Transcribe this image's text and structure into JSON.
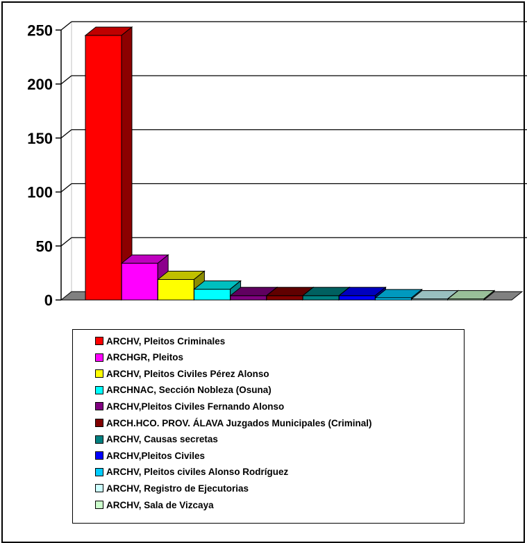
{
  "chart_data": {
    "type": "bar",
    "title": "",
    "xlabel": "",
    "ylabel": "",
    "ylim": [
      0,
      250
    ],
    "yticks": [
      0,
      50,
      100,
      150,
      200,
      250
    ],
    "grid": true,
    "legend_position": "bottom",
    "style": "3d-column",
    "categories": [
      "ARCHV, Pleitos Criminales",
      "ARCHGR, Pleitos",
      "ARCHV, Pleitos Civiles Pérez Alonso",
      "ARCHNAC, Sección Nobleza (Osuna)",
      "ARCHV,Pleitos Civiles Fernando Alonso",
      "ARCH.HCO. PROV. ÁLAVA Juzgados Municipales (Criminal)",
      "ARCHV, Causas secretas",
      "ARCHV,Pleitos Civiles",
      "ARCHV, Pleitos civiles  Alonso Rodríguez",
      "ARCHV, Registro de Ejecutorias",
      "ARCHV, Sala de Vizcaya"
    ],
    "values": [
      245,
      34,
      19,
      10,
      4,
      4,
      4,
      4,
      2,
      1,
      1
    ],
    "colors": [
      "#ff0000",
      "#ff00ff",
      "#ffff00",
      "#00ffff",
      "#800080",
      "#800000",
      "#008080",
      "#0000ff",
      "#00ccff",
      "#ccffff",
      "#ccffcc"
    ]
  }
}
